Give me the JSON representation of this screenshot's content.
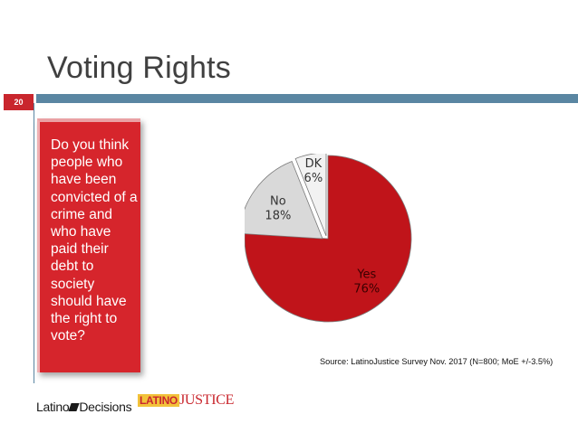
{
  "slide": {
    "title": "Voting Rights",
    "page_number": "20"
  },
  "question": {
    "text": "Do you think people who have been convicted of a crime and who have paid their debt to society should have the right to vote?"
  },
  "colors": {
    "accent_red": "#d6252c",
    "bar_blue": "#5a86a2",
    "yes": "#c0141a",
    "no": "#d9d9d9",
    "dk": "#f2f2f2"
  },
  "chart_data": {
    "type": "pie",
    "slices": [
      {
        "label": "Yes",
        "value": 76,
        "value_label": "76%",
        "color": "#c0141a"
      },
      {
        "label": "No",
        "value": 18,
        "value_label": "18%",
        "color": "#d9d9d9"
      },
      {
        "label": "DK",
        "value": 6,
        "value_label": "6%",
        "color": "#f2f2f2"
      }
    ]
  },
  "source": "Source: LatinoJustice Survey Nov. 2017 (N=800; MoE +/-3.5%)",
  "logos": {
    "latino_decisions": "Latino Decisions",
    "latinojustice": "LATINOJUSTICE"
  }
}
